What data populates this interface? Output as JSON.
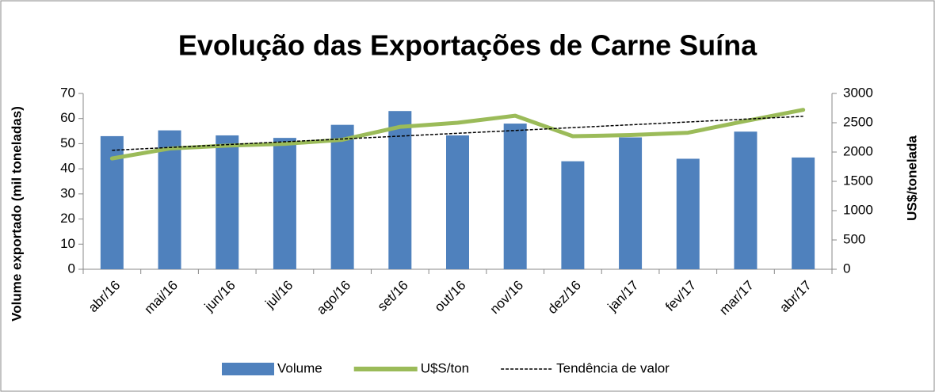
{
  "chart_data": {
    "type": "bar-line",
    "title": "Evolução das Exportações de Carne Suína",
    "y_label": "Volume exportado (mil toneladas)",
    "y2_label": "US$/tonelada",
    "categories": [
      "abr/16",
      "mai/16",
      "jun/16",
      "jul/16",
      "ago/16",
      "set/16",
      "out/16",
      "nov/16",
      "dez/16",
      "jan/17",
      "fev/17",
      "mar/17",
      "abr/17"
    ],
    "series": [
      {
        "name": "Volume",
        "type": "bar",
        "color": "#4f81bd",
        "values": [
          53,
          55.3,
          53.3,
          52.3,
          57.5,
          63,
          53.3,
          58,
          43,
          52.5,
          44,
          54.8,
          44.5
        ]
      },
      {
        "name": "U$S/ton",
        "type": "line",
        "axis": "y2",
        "color": "#9bbb59",
        "values": [
          1890,
          2060,
          2110,
          2140,
          2210,
          2430,
          2500,
          2620,
          2270,
          2290,
          2330,
          2530,
          2720
        ]
      },
      {
        "name": "Tendência de valor",
        "type": "trend",
        "axis": "y2",
        "color": "#000000",
        "values": [
          2030,
          2078,
          2127,
          2175,
          2223,
          2272,
          2320,
          2368,
          2417,
          2465,
          2513,
          2562,
          2610
        ]
      }
    ],
    "ylim": [
      0,
      70
    ],
    "yticks": [
      0,
      10,
      20,
      30,
      40,
      50,
      60,
      70
    ],
    "y2lim": [
      0,
      3000
    ],
    "y2ticks": [
      0,
      500,
      1000,
      1500,
      2000,
      2500,
      3000
    ],
    "legend": "bottom"
  }
}
